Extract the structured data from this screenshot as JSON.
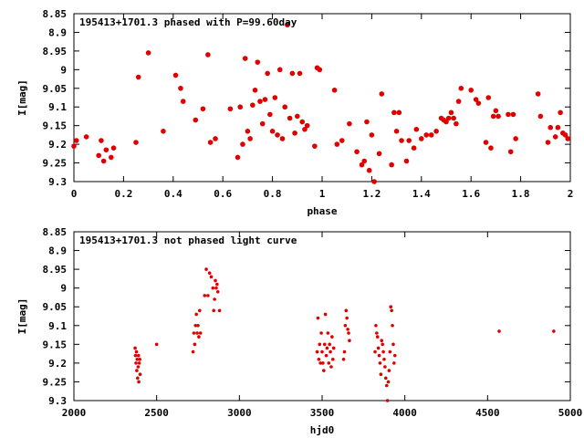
{
  "chart_data": [
    {
      "type": "scatter",
      "title": "195413+1701.3 phased with P=99.60day",
      "xlabel": "phase",
      "ylabel": "I[mag]",
      "xlim": [
        0,
        2
      ],
      "ylim": [
        9.3,
        8.85
      ],
      "y_inverted": true,
      "xticks": [
        "0",
        "0.2",
        "0.4",
        "0.6",
        "0.8",
        "1",
        "1.2",
        "1.4",
        "1.6",
        "1.8",
        "2"
      ],
      "yticks": [
        "8.85",
        "8.9",
        "8.95",
        "9",
        "9.05",
        "9.1",
        "9.15",
        "9.2",
        "9.25",
        "9.3"
      ],
      "marker": "point-large",
      "color": "#e00000",
      "points": [
        [
          0.0,
          9.205
        ],
        [
          0.01,
          9.19
        ],
        [
          0.05,
          9.18
        ],
        [
          0.1,
          9.23
        ],
        [
          0.11,
          9.19
        ],
        [
          0.12,
          9.245
        ],
        [
          0.13,
          9.215
        ],
        [
          0.15,
          9.235
        ],
        [
          0.16,
          9.21
        ],
        [
          0.25,
          9.195
        ],
        [
          0.26,
          9.02
        ],
        [
          0.3,
          8.955
        ],
        [
          0.36,
          9.165
        ],
        [
          0.41,
          9.015
        ],
        [
          0.43,
          9.05
        ],
        [
          0.44,
          9.085
        ],
        [
          0.49,
          9.135
        ],
        [
          0.52,
          9.105
        ],
        [
          0.54,
          8.96
        ],
        [
          0.55,
          9.195
        ],
        [
          0.57,
          9.185
        ],
        [
          0.63,
          9.105
        ],
        [
          0.66,
          9.235
        ],
        [
          0.67,
          9.1
        ],
        [
          0.68,
          9.2
        ],
        [
          0.69,
          8.97
        ],
        [
          0.7,
          9.165
        ],
        [
          0.71,
          9.185
        ],
        [
          0.72,
          9.095
        ],
        [
          0.73,
          9.055
        ],
        [
          0.74,
          8.98
        ],
        [
          0.75,
          9.085
        ],
        [
          0.76,
          9.145
        ],
        [
          0.77,
          9.08
        ],
        [
          0.78,
          9.01
        ],
        [
          0.79,
          9.12
        ],
        [
          0.8,
          9.165
        ],
        [
          0.81,
          9.075
        ],
        [
          0.82,
          9.175
        ],
        [
          0.83,
          9.0
        ],
        [
          0.84,
          9.185
        ],
        [
          0.85,
          9.1
        ],
        [
          0.86,
          8.88
        ],
        [
          0.87,
          9.13
        ],
        [
          0.88,
          9.01
        ],
        [
          0.89,
          9.17
        ],
        [
          0.9,
          9.125
        ],
        [
          0.91,
          9.01
        ],
        [
          0.92,
          9.14
        ],
        [
          0.93,
          9.16
        ],
        [
          0.94,
          9.15
        ],
        [
          0.97,
          9.205
        ],
        [
          0.98,
          8.995
        ],
        [
          0.99,
          9.0
        ],
        [
          1.05,
          9.055
        ],
        [
          1.06,
          9.2
        ],
        [
          1.08,
          9.19
        ],
        [
          1.11,
          9.145
        ],
        [
          1.14,
          9.22
        ],
        [
          1.16,
          9.255
        ],
        [
          1.17,
          9.245
        ],
        [
          1.18,
          9.14
        ],
        [
          1.19,
          9.27
        ],
        [
          1.2,
          9.175
        ],
        [
          1.21,
          9.3
        ],
        [
          1.23,
          9.225
        ],
        [
          1.24,
          9.065
        ],
        [
          1.28,
          9.255
        ],
        [
          1.29,
          9.115
        ],
        [
          1.3,
          9.165
        ],
        [
          1.31,
          9.115
        ],
        [
          1.32,
          9.19
        ],
        [
          1.34,
          9.245
        ],
        [
          1.35,
          9.19
        ],
        [
          1.37,
          9.21
        ],
        [
          1.38,
          9.16
        ],
        [
          1.4,
          9.185
        ],
        [
          1.42,
          9.175
        ],
        [
          1.44,
          9.175
        ],
        [
          1.46,
          9.165
        ],
        [
          1.48,
          9.13
        ],
        [
          1.49,
          9.135
        ],
        [
          1.5,
          9.14
        ],
        [
          1.51,
          9.13
        ],
        [
          1.52,
          9.115
        ],
        [
          1.53,
          9.13
        ],
        [
          1.54,
          9.145
        ],
        [
          1.55,
          9.085
        ],
        [
          1.56,
          9.05
        ],
        [
          1.6,
          9.055
        ],
        [
          1.62,
          9.08
        ],
        [
          1.63,
          9.09
        ],
        [
          1.66,
          9.195
        ],
        [
          1.67,
          9.075
        ],
        [
          1.68,
          9.21
        ],
        [
          1.69,
          9.125
        ],
        [
          1.7,
          9.11
        ],
        [
          1.71,
          9.125
        ],
        [
          1.75,
          9.12
        ],
        [
          1.76,
          9.22
        ],
        [
          1.77,
          9.12
        ],
        [
          1.78,
          9.185
        ],
        [
          1.87,
          9.065
        ],
        [
          1.88,
          9.125
        ],
        [
          1.91,
          9.195
        ],
        [
          1.92,
          9.155
        ],
        [
          1.94,
          9.18
        ],
        [
          1.95,
          9.155
        ],
        [
          1.96,
          9.115
        ],
        [
          1.97,
          9.17
        ],
        [
          1.98,
          9.175
        ],
        [
          1.99,
          9.185
        ]
      ]
    },
    {
      "type": "scatter",
      "title": "195413+1701.3 not phased light curve",
      "xlabel": "hjd0",
      "ylabel": "I[mag]",
      "xlim": [
        2000,
        5000
      ],
      "ylim": [
        9.3,
        8.85
      ],
      "y_inverted": true,
      "xticks": [
        "2000",
        "2500",
        "3000",
        "3500",
        "4000",
        "4500",
        "5000"
      ],
      "yticks": [
        "8.85",
        "8.9",
        "8.95",
        "9",
        "9.05",
        "9.1",
        "9.15",
        "9.2",
        "9.25",
        "9.3"
      ],
      "marker": "point-small",
      "color": "#e00000",
      "points": [
        [
          2370,
          9.16
        ],
        [
          2372,
          9.18
        ],
        [
          2375,
          9.2
        ],
        [
          2378,
          9.17
        ],
        [
          2380,
          9.22
        ],
        [
          2382,
          9.19
        ],
        [
          2385,
          9.24
        ],
        [
          2388,
          9.21
        ],
        [
          2390,
          9.18
        ],
        [
          2392,
          9.25
        ],
        [
          2395,
          9.2
        ],
        [
          2398,
          9.19
        ],
        [
          2400,
          9.23
        ],
        [
          2500,
          9.15
        ],
        [
          2720,
          9.17
        ],
        [
          2725,
          9.12
        ],
        [
          2730,
          9.15
        ],
        [
          2735,
          9.1
        ],
        [
          2740,
          9.07
        ],
        [
          2745,
          9.12
        ],
        [
          2750,
          9.1
        ],
        [
          2755,
          9.13
        ],
        [
          2760,
          9.06
        ],
        [
          2765,
          9.12
        ],
        [
          2790,
          9.02
        ],
        [
          2800,
          8.95
        ],
        [
          2810,
          9.02
        ],
        [
          2820,
          8.96
        ],
        [
          2830,
          8.97
        ],
        [
          2840,
          9.0
        ],
        [
          2845,
          9.06
        ],
        [
          2850,
          9.03
        ],
        [
          2855,
          8.98
        ],
        [
          2860,
          9.0
        ],
        [
          2865,
          8.99
        ],
        [
          2870,
          9.01
        ],
        [
          2880,
          9.06
        ],
        [
          3470,
          9.17
        ],
        [
          3475,
          9.08
        ],
        [
          3480,
          9.19
        ],
        [
          3485,
          9.15
        ],
        [
          3490,
          9.2
        ],
        [
          3495,
          9.12
        ],
        [
          3500,
          9.17
        ],
        [
          3505,
          9.2
        ],
        [
          3510,
          9.22
        ],
        [
          3515,
          9.15
        ],
        [
          3520,
          9.07
        ],
        [
          3525,
          9.18
        ],
        [
          3530,
          9.16
        ],
        [
          3535,
          9.12
        ],
        [
          3540,
          9.2
        ],
        [
          3545,
          9.15
        ],
        [
          3550,
          9.17
        ],
        [
          3555,
          9.21
        ],
        [
          3560,
          9.13
        ],
        [
          3565,
          9.19
        ],
        [
          3570,
          9.16
        ],
        [
          3630,
          9.19
        ],
        [
          3635,
          9.17
        ],
        [
          3640,
          9.1
        ],
        [
          3645,
          9.06
        ],
        [
          3650,
          9.08
        ],
        [
          3655,
          9.11
        ],
        [
          3660,
          9.12
        ],
        [
          3665,
          9.14
        ],
        [
          3820,
          9.17
        ],
        [
          3825,
          9.1
        ],
        [
          3830,
          9.12
        ],
        [
          3835,
          9.13
        ],
        [
          3840,
          9.16
        ],
        [
          3845,
          9.18
        ],
        [
          3850,
          9.2
        ],
        [
          3855,
          9.23
        ],
        [
          3860,
          9.14
        ],
        [
          3865,
          9.15
        ],
        [
          3870,
          9.17
        ],
        [
          3875,
          9.19
        ],
        [
          3880,
          9.21
        ],
        [
          3885,
          9.24
        ],
        [
          3890,
          9.26
        ],
        [
          3895,
          9.3
        ],
        [
          3900,
          9.25
        ],
        [
          3905,
          9.22
        ],
        [
          3910,
          9.17
        ],
        [
          3915,
          9.05
        ],
        [
          3920,
          9.06
        ],
        [
          3925,
          9.1
        ],
        [
          3930,
          9.15
        ],
        [
          3935,
          9.2
        ],
        [
          3940,
          9.18
        ],
        [
          4570,
          9.115
        ],
        [
          4900,
          9.115
        ]
      ]
    }
  ]
}
